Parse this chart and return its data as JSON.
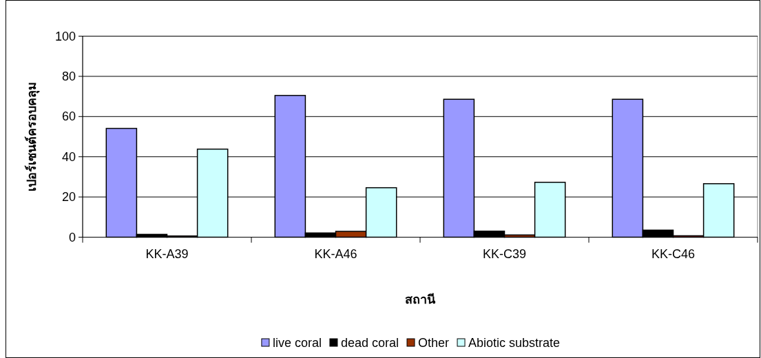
{
  "chart_data": {
    "type": "bar",
    "xlabel": "สถานี",
    "ylabel": "เปอร์เซนต์ครอบคลุม",
    "categories": [
      "KK-A39",
      "KK-A46",
      "KK-C39",
      "KK-C46"
    ],
    "series": [
      {
        "name": "live coral",
        "color": "#9999ff",
        "values": [
          54.1,
          70.5,
          68.6,
          68.6
        ]
      },
      {
        "name": "dead coral",
        "color": "#000000",
        "values": [
          1.4,
          2.1,
          3.0,
          3.5
        ]
      },
      {
        "name": "Other",
        "color": "#993300",
        "values": [
          0.6,
          2.9,
          1.1,
          0.7
        ]
      },
      {
        "name": "Abiotic substrate",
        "color": "#ccffff",
        "values": [
          43.8,
          24.6,
          27.3,
          26.6
        ]
      }
    ],
    "ylim": [
      0,
      100
    ],
    "yticks": [
      0,
      20,
      40,
      60,
      80,
      100
    ],
    "grid": "y",
    "legend": "bottom"
  }
}
